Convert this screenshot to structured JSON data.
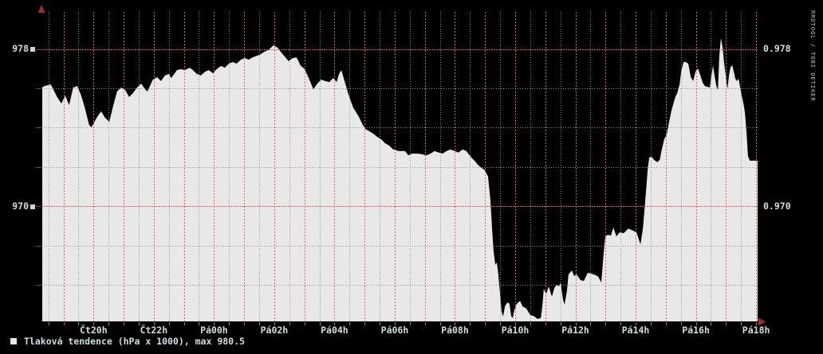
{
  "colors": {
    "background": "#000000",
    "area_fill": "#e8e8e8",
    "grid_minor": "#8f8f8f",
    "grid_major": "#e06060",
    "text": "#cfdede",
    "marker_square": "#c9d6d6",
    "axis_arrow": "#9b2f2f",
    "axis_line": "#000000"
  },
  "watermark": "RRDTOOL / TOBI OETIKER",
  "legend": {
    "swatch_color": "#e8e8e8",
    "label": "Tlaková tendence (hPa x 1000), max 980.5"
  },
  "chart_data": {
    "type": "area",
    "title": "Tlaková tendence (hPa x 1000), max 980.5",
    "grid": true,
    "legend_position": "bottom-left",
    "x_axis": {
      "range": [
        18.27,
        42.05
      ],
      "minor_interval_hours": 0.5,
      "major_interval_hours": 1,
      "label_interval_hours": 2,
      "ticks": [
        {
          "t": 20,
          "label": "Čt20h"
        },
        {
          "t": 22,
          "label": "Čt22h"
        },
        {
          "t": 24,
          "label": "Pá00h"
        },
        {
          "t": 26,
          "label": "Pá02h"
        },
        {
          "t": 28,
          "label": "Pá04h"
        },
        {
          "t": 30,
          "label": "Pá06h"
        },
        {
          "t": 32,
          "label": "Pá08h"
        },
        {
          "t": 34,
          "label": "Pá10h"
        },
        {
          "t": 36,
          "label": "Pá12h"
        },
        {
          "t": 38,
          "label": "Pá14h"
        },
        {
          "t": 40,
          "label": "Pá16h"
        },
        {
          "t": 42,
          "label": "Pá18h"
        }
      ]
    },
    "y_axis": {
      "range": [
        964.14,
        979.89
      ],
      "red_lines": [
        978,
        970
      ],
      "gray_lines": [
        976,
        974,
        972,
        968,
        966
      ],
      "left_labels": [
        {
          "value": 978,
          "label": "978"
        },
        {
          "value": 970,
          "label": "970"
        }
      ],
      "right_labels": [
        {
          "value": 978,
          "label": "0.978"
        },
        {
          "value": 970,
          "label": "0.970"
        }
      ]
    },
    "series": [
      {
        "name": "Tlaková tendence",
        "color": "#e8e8e8",
        "max": 980.5,
        "points": [
          [
            18.27,
            976.04
          ],
          [
            18.37,
            976.12
          ],
          [
            18.58,
            976.2
          ],
          [
            18.79,
            975.56
          ],
          [
            18.93,
            975.23
          ],
          [
            19.06,
            975.64
          ],
          [
            19.19,
            975.15
          ],
          [
            19.32,
            976.04
          ],
          [
            19.46,
            976.12
          ],
          [
            19.59,
            975.64
          ],
          [
            19.72,
            974.95
          ],
          [
            19.85,
            974.14
          ],
          [
            19.93,
            974.02
          ],
          [
            20.12,
            974.55
          ],
          [
            20.25,
            974.83
          ],
          [
            20.38,
            974.51
          ],
          [
            20.52,
            974.3
          ],
          [
            20.65,
            975.11
          ],
          [
            20.78,
            975.84
          ],
          [
            20.91,
            976.04
          ],
          [
            21.05,
            975.92
          ],
          [
            21.18,
            975.56
          ],
          [
            21.31,
            975.76
          ],
          [
            21.44,
            976.04
          ],
          [
            21.58,
            976.24
          ],
          [
            21.71,
            975.96
          ],
          [
            21.79,
            975.84
          ],
          [
            21.97,
            976.45
          ],
          [
            22.11,
            976.57
          ],
          [
            22.24,
            976.37
          ],
          [
            22.37,
            976.65
          ],
          [
            22.5,
            976.73
          ],
          [
            22.58,
            976.53
          ],
          [
            22.77,
            976.93
          ],
          [
            22.9,
            976.98
          ],
          [
            23.03,
            976.93
          ],
          [
            23.19,
            977.05
          ],
          [
            23.3,
            976.93
          ],
          [
            23.43,
            976.73
          ],
          [
            23.56,
            976.65
          ],
          [
            23.7,
            976.85
          ],
          [
            23.83,
            976.93
          ],
          [
            23.96,
            976.77
          ],
          [
            24.09,
            976.98
          ],
          [
            24.23,
            977.14
          ],
          [
            24.36,
            977.05
          ],
          [
            24.49,
            977.26
          ],
          [
            24.62,
            977.34
          ],
          [
            24.75,
            977.26
          ],
          [
            24.89,
            977.46
          ],
          [
            25.02,
            977.54
          ],
          [
            25.15,
            977.46
          ],
          [
            25.28,
            977.58
          ],
          [
            25.42,
            977.66
          ],
          [
            25.55,
            977.74
          ],
          [
            25.68,
            977.87
          ],
          [
            25.81,
            977.95
          ],
          [
            25.97,
            978.19
          ],
          [
            26.11,
            978.07
          ],
          [
            26.21,
            977.87
          ],
          [
            26.37,
            977.58
          ],
          [
            26.48,
            977.38
          ],
          [
            26.61,
            977.54
          ],
          [
            26.74,
            977.58
          ],
          [
            26.87,
            977.17
          ],
          [
            27.01,
            976.98
          ],
          [
            27.14,
            976.53
          ],
          [
            27.3,
            975.96
          ],
          [
            27.43,
            976.24
          ],
          [
            27.56,
            976.45
          ],
          [
            27.69,
            976.37
          ],
          [
            27.83,
            976.32
          ],
          [
            27.96,
            976.53
          ],
          [
            28.07,
            976.32
          ],
          [
            28.15,
            976.73
          ],
          [
            28.23,
            976.93
          ],
          [
            28.36,
            976.24
          ],
          [
            28.46,
            975.72
          ],
          [
            28.54,
            975.36
          ],
          [
            28.62,
            975.03
          ],
          [
            28.73,
            974.75
          ],
          [
            28.81,
            974.55
          ],
          [
            28.94,
            974.14
          ],
          [
            29.02,
            973.94
          ],
          [
            29.15,
            973.82
          ],
          [
            29.28,
            973.7
          ],
          [
            29.42,
            973.53
          ],
          [
            29.55,
            973.41
          ],
          [
            29.68,
            973.21
          ],
          [
            29.81,
            973.09
          ],
          [
            29.95,
            972.89
          ],
          [
            30.13,
            972.81
          ],
          [
            30.34,
            972.81
          ],
          [
            30.45,
            972.6
          ],
          [
            30.58,
            972.68
          ],
          [
            30.79,
            972.68
          ],
          [
            31.06,
            972.6
          ],
          [
            31.19,
            972.68
          ],
          [
            31.32,
            972.81
          ],
          [
            31.46,
            972.73
          ],
          [
            31.59,
            972.68
          ],
          [
            31.72,
            972.81
          ],
          [
            31.85,
            972.89
          ],
          [
            31.99,
            972.81
          ],
          [
            32.12,
            972.73
          ],
          [
            32.25,
            972.89
          ],
          [
            32.38,
            972.81
          ],
          [
            32.52,
            972.52
          ],
          [
            32.65,
            972.32
          ],
          [
            32.78,
            972.08
          ],
          [
            32.91,
            971.92
          ],
          [
            32.99,
            971.84
          ],
          [
            33.1,
            971.51
          ],
          [
            33.18,
            970.3
          ],
          [
            33.23,
            968.96
          ],
          [
            33.28,
            967.75
          ],
          [
            33.34,
            967.02
          ],
          [
            33.39,
            967.14
          ],
          [
            33.44,
            966.53
          ],
          [
            33.5,
            965.52
          ],
          [
            33.55,
            964.63
          ],
          [
            33.6,
            964.39
          ],
          [
            33.66,
            964.91
          ],
          [
            33.74,
            965.11
          ],
          [
            33.81,
            965.03
          ],
          [
            33.87,
            964.39
          ],
          [
            33.92,
            964.31
          ],
          [
            33.97,
            964.72
          ],
          [
            34.05,
            965.03
          ],
          [
            34.16,
            965.19
          ],
          [
            34.24,
            964.91
          ],
          [
            34.37,
            964.79
          ],
          [
            34.5,
            964.47
          ],
          [
            34.64,
            964.39
          ],
          [
            34.74,
            964.26
          ],
          [
            34.85,
            964.31
          ],
          [
            34.9,
            964.91
          ],
          [
            34.95,
            965.8
          ],
          [
            35.03,
            965.52
          ],
          [
            35.11,
            965.92
          ],
          [
            35.22,
            965.4
          ],
          [
            35.3,
            965.84
          ],
          [
            35.38,
            966.0
          ],
          [
            35.46,
            965.92
          ],
          [
            35.51,
            966.12
          ],
          [
            35.59,
            965.23
          ],
          [
            35.64,
            964.99
          ],
          [
            35.72,
            965.72
          ],
          [
            35.77,
            966.53
          ],
          [
            35.88,
            966.73
          ],
          [
            35.96,
            966.45
          ],
          [
            36.04,
            966.53
          ],
          [
            36.17,
            966.24
          ],
          [
            36.28,
            966.2
          ],
          [
            36.41,
            966.61
          ],
          [
            36.54,
            966.57
          ],
          [
            36.68,
            966.49
          ],
          [
            36.76,
            966.41
          ],
          [
            36.86,
            966.12
          ],
          [
            36.94,
            967.66
          ],
          [
            36.99,
            968.43
          ],
          [
            37.07,
            968.55
          ],
          [
            37.18,
            968.51
          ],
          [
            37.26,
            968.92
          ],
          [
            37.36,
            968.47
          ],
          [
            37.47,
            968.67
          ],
          [
            37.6,
            968.63
          ],
          [
            37.76,
            968.87
          ],
          [
            37.87,
            968.79
          ],
          [
            38.03,
            968.67
          ],
          [
            38.08,
            968.43
          ],
          [
            38.16,
            968.06
          ],
          [
            38.24,
            968.85
          ],
          [
            38.32,
            970.26
          ],
          [
            38.4,
            971.88
          ],
          [
            38.45,
            972.48
          ],
          [
            38.53,
            972.52
          ],
          [
            38.61,
            972.36
          ],
          [
            38.72,
            972.24
          ],
          [
            38.8,
            972.36
          ],
          [
            38.85,
            972.77
          ],
          [
            38.95,
            973.41
          ],
          [
            39.03,
            973.65
          ],
          [
            39.11,
            974.3
          ],
          [
            39.19,
            974.87
          ],
          [
            39.27,
            975.31
          ],
          [
            39.32,
            975.56
          ],
          [
            39.38,
            975.76
          ],
          [
            39.46,
            976.2
          ],
          [
            39.51,
            976.85
          ],
          [
            39.59,
            977.34
          ],
          [
            39.67,
            977.34
          ],
          [
            39.75,
            977.26
          ],
          [
            39.83,
            976.57
          ],
          [
            39.91,
            976.37
          ],
          [
            39.99,
            976.85
          ],
          [
            40.07,
            977.01
          ],
          [
            40.15,
            976.65
          ],
          [
            40.23,
            976.28
          ],
          [
            40.3,
            976.12
          ],
          [
            40.38,
            976.08
          ],
          [
            40.46,
            976.04
          ],
          [
            40.52,
            976.65
          ],
          [
            40.57,
            977.17
          ],
          [
            40.62,
            976.65
          ],
          [
            40.68,
            976.12
          ],
          [
            40.73,
            975.92
          ],
          [
            40.78,
            977.66
          ],
          [
            40.83,
            978.55
          ],
          [
            40.89,
            978.07
          ],
          [
            40.94,
            977.26
          ],
          [
            40.99,
            976.65
          ],
          [
            41.05,
            975.96
          ],
          [
            41.1,
            976.65
          ],
          [
            41.15,
            977.09
          ],
          [
            41.21,
            977.17
          ],
          [
            41.26,
            976.85
          ],
          [
            41.31,
            976.49
          ],
          [
            41.36,
            976.37
          ],
          [
            41.42,
            976.49
          ],
          [
            41.47,
            976.04
          ],
          [
            41.52,
            975.64
          ],
          [
            41.58,
            975.23
          ],
          [
            41.63,
            974.75
          ],
          [
            41.68,
            973.82
          ],
          [
            41.73,
            972.56
          ],
          [
            41.79,
            972.32
          ],
          [
            41.89,
            972.32
          ],
          [
            42.05,
            972.32
          ]
        ]
      }
    ]
  }
}
